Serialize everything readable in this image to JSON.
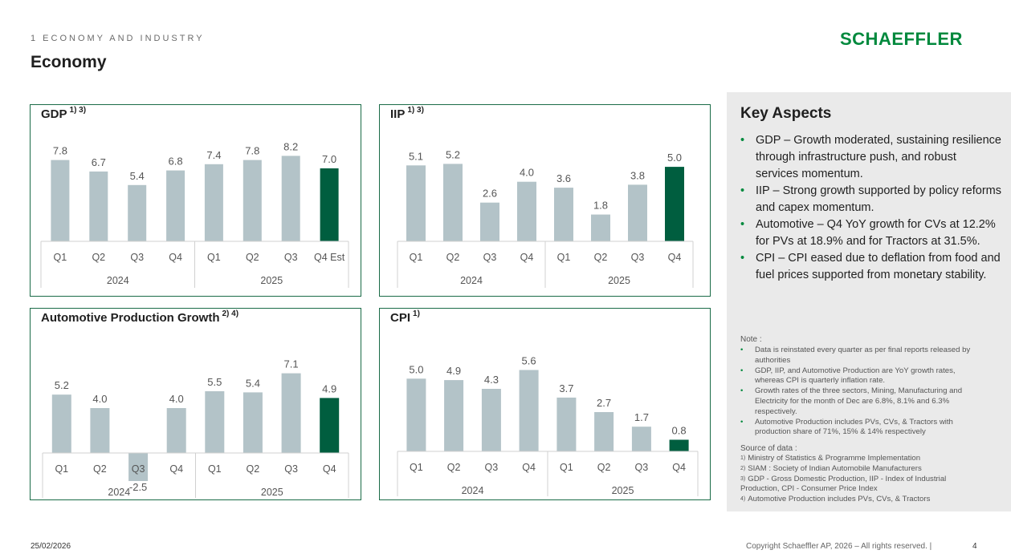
{
  "header": {
    "section_label": "1 ECONOMY AND INDUSTRY",
    "title": "Economy",
    "logo": "SCHAEFFLER"
  },
  "colors": {
    "bar": "#b3c3c8",
    "highlight": "#005e3f",
    "panel_border": "#1a6b47",
    "brand": "#00893d"
  },
  "chart_data": [
    {
      "id": "gdp",
      "type": "bar",
      "title": "GDP",
      "title_sup": "1) 3)",
      "categories": [
        "Q1",
        "Q2",
        "Q3",
        "Q4",
        "Q1",
        "Q2",
        "Q3",
        "Q4 Est"
      ],
      "values": [
        7.8,
        6.7,
        5.4,
        6.8,
        7.4,
        7.8,
        8.2,
        7.0
      ],
      "labels": [
        "7.8",
        "6.7",
        "5.4",
        "6.8",
        "7.4",
        "7.8",
        "8.2",
        "7.0"
      ],
      "highlight_index": 7,
      "groups": [
        "2024",
        "2025"
      ],
      "ylim": [
        0,
        10
      ]
    },
    {
      "id": "iip",
      "type": "bar",
      "title": "IIP",
      "title_sup": "1) 3)",
      "categories": [
        "Q1",
        "Q2",
        "Q3",
        "Q4",
        "Q1",
        "Q2",
        "Q3",
        "Q4"
      ],
      "values": [
        5.1,
        5.2,
        2.6,
        4.0,
        3.6,
        1.8,
        3.8,
        5.0
      ],
      "labels": [
        "5.1",
        "5.2",
        "2.6",
        "4.0",
        "3.6",
        "1.8",
        "3.8",
        "5.0"
      ],
      "highlight_index": 7,
      "groups": [
        "2024",
        "2025"
      ],
      "ylim": [
        0,
        7
      ]
    },
    {
      "id": "auto",
      "type": "bar",
      "title": "Automotive Production Growth",
      "title_sup": "2) 4)",
      "categories": [
        "Q1",
        "Q2",
        "Q3",
        "Q4",
        "Q1",
        "Q2",
        "Q3",
        "Q4"
      ],
      "values": [
        5.2,
        4.0,
        -2.5,
        4.0,
        5.5,
        5.4,
        7.1,
        4.9
      ],
      "labels": [
        "5.2",
        "4.0",
        "-2.5",
        "4.0",
        "5.5",
        "5.4",
        "7.1",
        "4.9"
      ],
      "highlight_index": 7,
      "groups": [
        "2024",
        "2025"
      ],
      "ylim": [
        -3,
        10
      ]
    },
    {
      "id": "cpi",
      "type": "bar",
      "title": "CPI",
      "title_sup": "1)",
      "categories": [
        "Q1",
        "Q2",
        "Q3",
        "Q4",
        "Q1",
        "Q2",
        "Q3",
        "Q4"
      ],
      "values": [
        5.0,
        4.9,
        4.3,
        5.6,
        3.7,
        2.7,
        1.7,
        0.8
      ],
      "labels": [
        "5.0",
        "4.9",
        "4.3",
        "5.6",
        "3.7",
        "2.7",
        "1.7",
        "0.8"
      ],
      "highlight_index": 7,
      "groups": [
        "2024",
        "2025"
      ],
      "ylim": [
        0,
        7.5
      ]
    }
  ],
  "key_aspects": {
    "title": "Key Aspects",
    "items": [
      "GDP – Growth moderated, sustaining resilience through infrastructure push, and robust services momentum.",
      "IIP – Strong growth supported by policy reforms and capex momentum.",
      "Automotive – Q4 YoY growth for CVs at 12.2% for PVs at 18.9% and for Tractors at 31.5%.",
      "CPI – CPI eased due to deflation from food and fuel prices supported from monetary stability."
    ]
  },
  "note": {
    "title": "Note :",
    "items": [
      "Data is reinstated every quarter as per final reports released by authorities",
      "GDP, IIP, and Automotive Production are YoY growth rates, whereas CPI is quarterly inflation rate.",
      "Growth rates of the three sectors, Mining, Manufacturing and Electricity for the month of Dec are 6.8%, 8.1% and 6.3% respectively.",
      "Automotive Production includes PVs, CVs, & Tractors with production share of 71%, 15% & 14% respectively"
    ]
  },
  "sources": {
    "title": "Source of data :",
    "items": [
      {
        "sup": "1)",
        "text": "Ministry of Statistics & Programme Implementation"
      },
      {
        "sup": "2)",
        "text": "SIAM : Society of Indian Automobile Manufacturers"
      },
      {
        "sup": "3)",
        "text": "GDP - Gross Domestic Production, IIP - Index of Industrial Production, CPI - Consumer Price Index"
      },
      {
        "sup": "4)",
        "text": "Automotive Production includes PVs, CVs, & Tractors"
      }
    ]
  },
  "footer": {
    "date": "25/02/2026",
    "copyright": "Copyright Schaeffler AP, 2026 – All rights reserved. |",
    "page": "4"
  }
}
